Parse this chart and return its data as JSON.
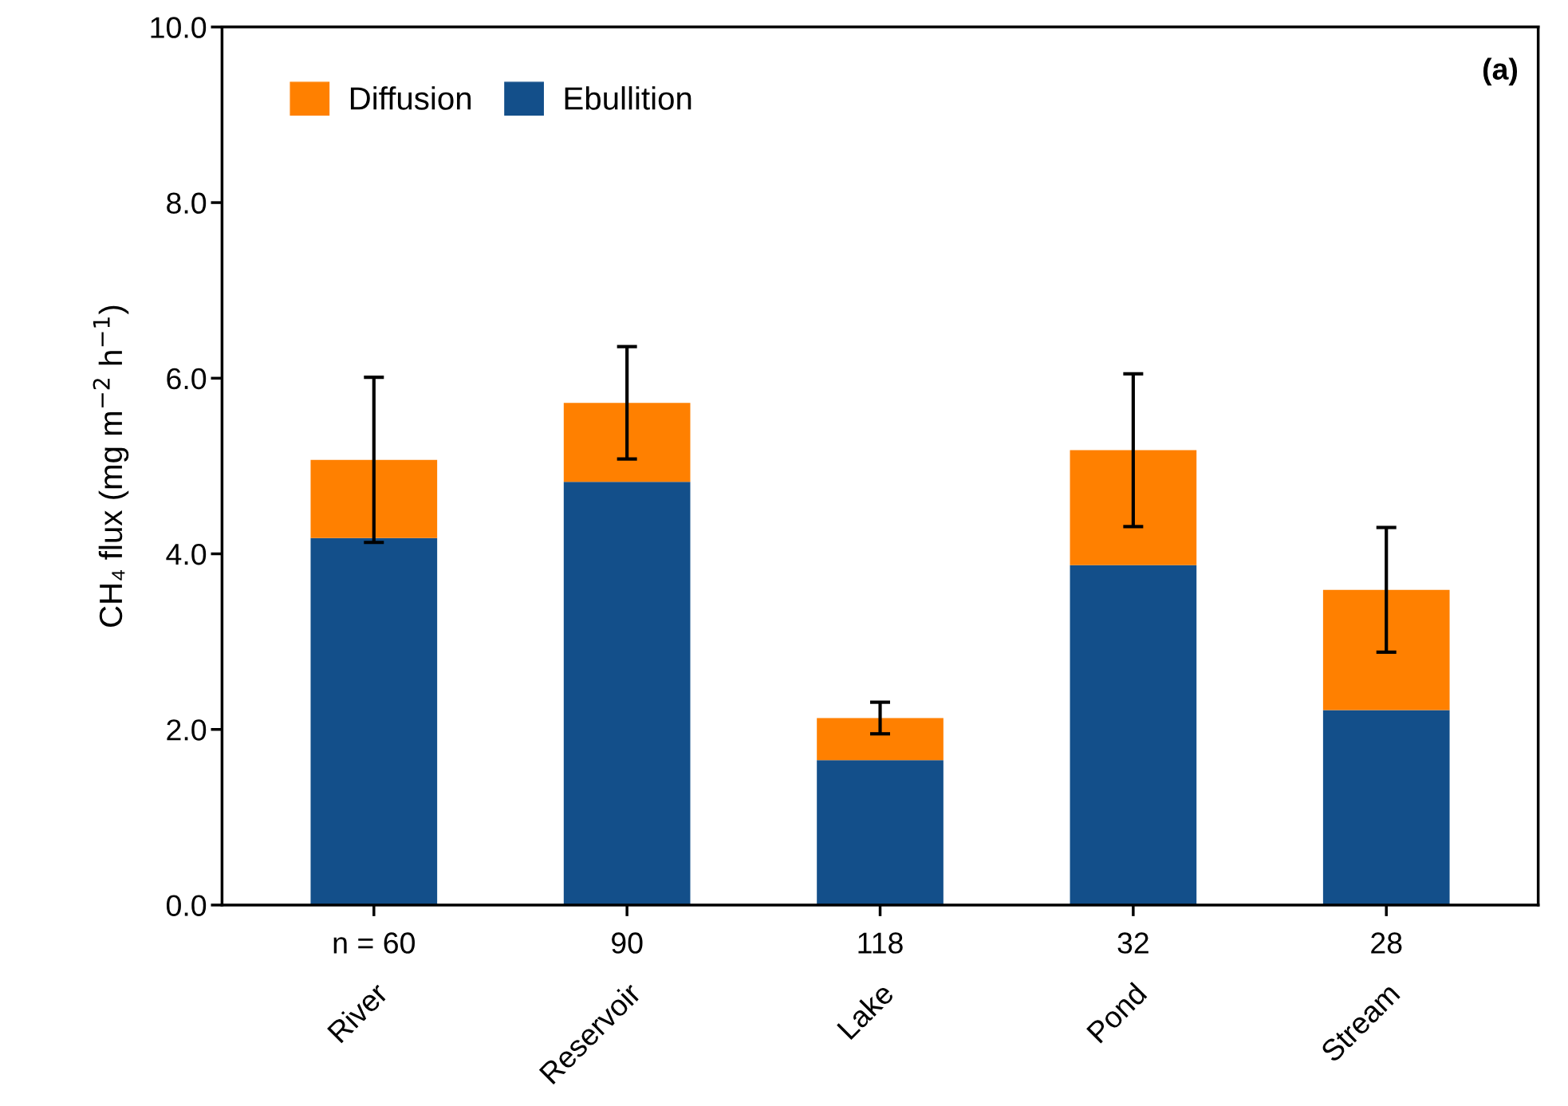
{
  "chart_data": {
    "type": "bar",
    "stacked": true,
    "ylabel": "CH₄ flux (mg m$^{−2}$ h$^{−1}$)",
    "categories": [
      "River",
      "Reservoir",
      "Lake",
      "Pond",
      "Stream"
    ],
    "series": [
      {
        "name": "Ebullition",
        "color": "#134f8a",
        "values": [
          4.18,
          4.82,
          1.65,
          3.87,
          2.22
        ]
      },
      {
        "name": "Diffusion",
        "color": "#ff8000",
        "values": [
          0.89,
          0.9,
          0.48,
          1.31,
          1.37
        ],
        "errors": [
          0.94,
          0.64,
          0.18,
          0.87,
          0.71
        ]
      }
    ],
    "ylim": [
      0,
      10
    ],
    "yticks": [
      {
        "value": 0,
        "label": "0.0"
      },
      {
        "value": 2,
        "label": "2.0"
      },
      {
        "value": 4,
        "label": "4.0"
      },
      {
        "value": 6,
        "label": "6.0"
      },
      {
        "value": 8,
        "label": "8.0"
      },
      {
        "value": 10,
        "label": "10.0"
      }
    ],
    "legend": "top left",
    "grid": false,
    "annotations": [
      "n = 60",
      "90",
      "118",
      "32",
      "28",
      "(a)"
    ]
  }
}
